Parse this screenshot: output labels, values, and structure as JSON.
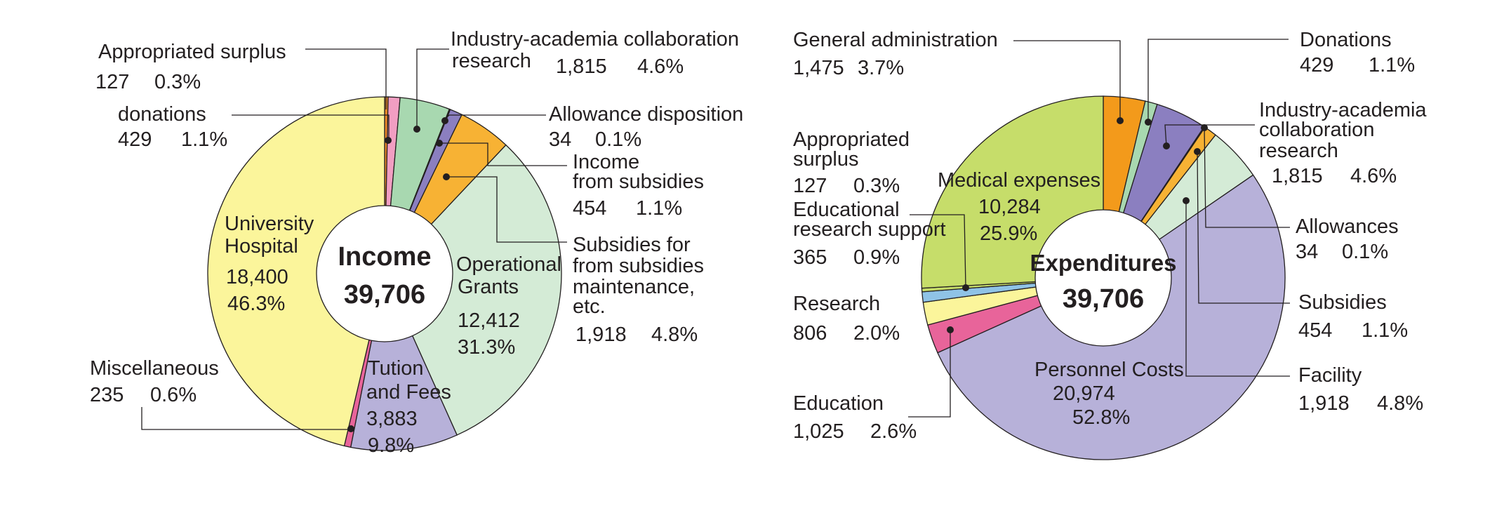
{
  "chart_data": [
    {
      "type": "pie",
      "center_title": "Income",
      "center_total": "39,706",
      "total": 39706,
      "slices": [
        {
          "name": "Appropriated surplus",
          "value": 127,
          "percent": "0.3%",
          "color": "#f28c28"
        },
        {
          "name": "donations",
          "value": 429,
          "percent": "1.1%",
          "color": "#f19ec2"
        },
        {
          "name": "Industry-academia collaboration research",
          "value": 1815,
          "percent": "4.6%",
          "color": "#a8d8b0"
        },
        {
          "name": "Allowance disposition",
          "value": 34,
          "percent": "0.1%",
          "color": "#6fa8d8"
        },
        {
          "name": "Income from subsidies",
          "value": 454,
          "percent": "1.1%",
          "color": "#8b7fc0"
        },
        {
          "name": "Subsidies for from subsidies maintenance, etc.",
          "value": 1918,
          "percent": "4.8%",
          "color": "#f7b234"
        },
        {
          "name": "Operational Grants",
          "value": 12412,
          "percent": "31.3%",
          "color": "#d4ebd6"
        },
        {
          "name": "Tution and Fees",
          "value": 3883,
          "percent": "9.8%",
          "color": "#b7b1d9"
        },
        {
          "name": "Miscellaneous",
          "value": 235,
          "percent": "0.6%",
          "color": "#e8649a"
        },
        {
          "name": "University Hospital",
          "value": 18400,
          "percent": "46.3%",
          "color": "#fbf59b"
        }
      ],
      "labels": {
        "appropriated": {
          "line1": "Appropriated surplus",
          "value": "127",
          "pct": "0.3%"
        },
        "donations": {
          "line1": "donations",
          "value": "429",
          "pct": "1.1%"
        },
        "industry": {
          "line1": "Industry-academia collaboration",
          "line2": "research",
          "value": "1,815",
          "pct": "4.6%"
        },
        "allowance": {
          "line1": "Allowance disposition",
          "value": "34",
          "pct": "0.1%"
        },
        "income_subsidies": {
          "line1": "Income",
          "line2": "from subsidies",
          "value": "454",
          "pct": "1.1%"
        },
        "subsidies_for": {
          "line1": "Subsidies for",
          "line2": "from subsidies",
          "line3": "maintenance,",
          "line4": "etc.",
          "value": "1,918",
          "pct": "4.8%"
        },
        "operational": {
          "line1": "Operational",
          "line2": "Grants",
          "value": "12,412",
          "pct": "31.3%"
        },
        "tuition": {
          "line1": "Tution",
          "line2": "and Fees",
          "value": "3,883",
          "pct": "9.8%"
        },
        "miscellaneous": {
          "line1": "Miscellaneous",
          "value": "235",
          "pct": "0.6%"
        },
        "hospital": {
          "line1": "University",
          "line2": "Hospital",
          "value": "18,400",
          "pct": "46.3%"
        }
      }
    },
    {
      "type": "pie",
      "center_title": "Expenditures",
      "center_total": "39,706",
      "total": 39706,
      "slices": [
        {
          "name": "General administration",
          "value": 1475,
          "percent": "3.7%",
          "color": "#f39a1b"
        },
        {
          "name": "Donations",
          "value": 429,
          "percent": "1.1%",
          "color": "#a8d8b0"
        },
        {
          "name": "Industry-academia collaboration research",
          "value": 1815,
          "percent": "4.6%",
          "color": "#8b7fc0"
        },
        {
          "name": "Allowances",
          "value": 34,
          "percent": "0.1%",
          "color": "#6fa8d8"
        },
        {
          "name": "Subsidies",
          "value": 454,
          "percent": "1.1%",
          "color": "#f7b234"
        },
        {
          "name": "Facility",
          "value": 1918,
          "percent": "4.8%",
          "color": "#d4ebd6"
        },
        {
          "name": "Personnel Costs",
          "value": 20974,
          "percent": "52.8%",
          "color": "#b7b1d9"
        },
        {
          "name": "Education",
          "value": 1025,
          "percent": "2.6%",
          "color": "#e8649a"
        },
        {
          "name": "Research",
          "value": 806,
          "percent": "2.0%",
          "color": "#fbf59b"
        },
        {
          "name": "Educational research support",
          "value": 365,
          "percent": "0.9%",
          "color": "#8fc3e6"
        },
        {
          "name": "Appropriated surplus",
          "value": 127,
          "percent": "0.3%",
          "color": "#c6dd6a"
        },
        {
          "name": "Medical expenses",
          "value": 10284,
          "percent": "25.9%",
          "color": "#c6dd6a"
        }
      ],
      "labels": {
        "general_admin": {
          "line1": "General administration",
          "value": "1,475",
          "pct": "3.7%"
        },
        "donations": {
          "line1": "Donations",
          "value": "429",
          "pct": "1.1%"
        },
        "industry": {
          "line1": "Industry-academia",
          "line2": "collaboration",
          "line3": "research",
          "value": "1,815",
          "pct": "4.6%"
        },
        "allowances": {
          "line1": "Allowances",
          "value": "34",
          "pct": "0.1%"
        },
        "subsidies": {
          "line1": "Subsidies",
          "value": "454",
          "pct": "1.1%"
        },
        "facility": {
          "line1": "Facility",
          "value": "1,918",
          "pct": "4.8%"
        },
        "personnel": {
          "line1": "Personnel Costs",
          "value": "20,974",
          "pct": "52.8%"
        },
        "education": {
          "line1": "Education",
          "value": "1,025",
          "pct": "2.6%"
        },
        "research": {
          "line1": "Research",
          "value": "806",
          "pct": "2.0%"
        },
        "edu_support": {
          "line1": "Educational",
          "line2": "research support",
          "value": "365",
          "pct": "0.9%"
        },
        "appropriated": {
          "line1": "Appropriated",
          "line2": "surplus",
          "value": "127",
          "pct": "0.3%"
        },
        "medical": {
          "line1": "Medical expenses",
          "value": "10,284",
          "pct": "25.9%"
        }
      }
    }
  ]
}
